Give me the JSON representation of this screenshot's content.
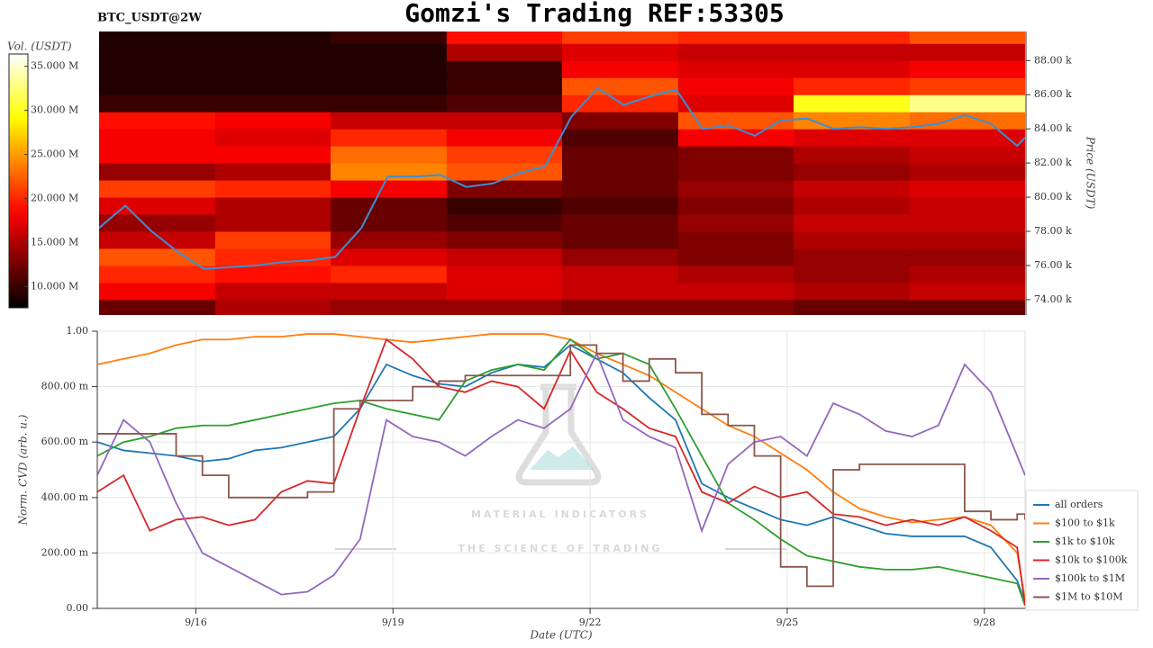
{
  "title": "Gomzi's Trading REF:53305",
  "watermark": {
    "title": "MATERIAL INDICATORS",
    "subtitle": "THE SCIENCE OF TRADING"
  },
  "chart_data": [
    {
      "type": "heatmap",
      "label": "BTC_USDT@2W",
      "ylabel": "Price (USDT)",
      "colormap": "hot",
      "colorbar": {
        "label": "Vol. (USDT)",
        "lim": [
          7.6,
          36.4
        ],
        "ticks": [
          {
            "value": 10,
            "label": "10.000 M"
          },
          {
            "value": 15,
            "label": "15.000 M"
          },
          {
            "value": 20,
            "label": "20.000 M"
          },
          {
            "value": 25,
            "label": "25.000 M"
          },
          {
            "value": 30,
            "label": "30.000 M"
          },
          {
            "value": 35,
            "label": "35.000 M"
          }
        ]
      },
      "xlim": [
        14.5,
        28.62
      ],
      "ylim": [
        73100,
        89700
      ],
      "yticks": [
        {
          "value": 74000,
          "label": "74.00 k"
        },
        {
          "value": 76000,
          "label": "76.00 k"
        },
        {
          "value": 78000,
          "label": "78.00 k"
        },
        {
          "value": 80000,
          "label": "80.00 k"
        },
        {
          "value": 82000,
          "label": "82.00 k"
        },
        {
          "value": 84000,
          "label": "84.00 k"
        },
        {
          "value": 86000,
          "label": "86.00 k"
        },
        {
          "value": 88000,
          "label": "88.00 k"
        }
      ],
      "bins": [
        14.5,
        16.27,
        18.03,
        19.8,
        21.56,
        23.33,
        25.09,
        26.86,
        28.62
      ],
      "levels": [
        73500,
        74500,
        75500,
        76500,
        77500,
        78500,
        79500,
        80500,
        81500,
        82500,
        83500,
        84500,
        85500,
        86500,
        87500,
        88500,
        89500
      ],
      "values": [
        [
          12,
          15,
          14,
          14,
          13,
          13,
          12,
          12
        ],
        [
          18,
          16,
          16,
          17,
          16,
          16,
          15,
          16
        ],
        [
          20,
          19,
          20,
          17,
          16,
          15,
          14,
          15
        ],
        [
          22,
          20,
          17,
          16,
          14,
          13,
          14,
          14
        ],
        [
          16,
          21,
          14,
          13,
          12,
          13,
          15,
          15
        ],
        [
          14,
          15,
          12,
          11,
          12,
          14,
          16,
          16
        ],
        [
          17,
          15,
          12,
          10,
          11,
          13,
          15,
          16
        ],
        [
          21,
          20,
          18,
          13,
          12,
          14,
          16,
          17
        ],
        [
          14,
          15,
          24,
          22,
          12,
          13,
          14,
          15
        ],
        [
          18,
          18,
          23,
          21,
          12,
          13,
          15,
          16
        ],
        [
          18,
          17,
          20,
          18,
          11,
          18,
          17,
          17
        ],
        [
          19,
          18,
          16,
          16,
          13,
          22,
          24,
          23
        ],
        [
          10,
          10,
          10,
          11,
          20,
          17,
          30,
          33
        ],
        [
          9,
          9,
          9,
          10,
          22,
          18,
          20,
          21
        ],
        [
          9,
          9,
          9,
          10,
          18,
          17,
          17,
          18
        ],
        [
          9,
          9,
          9,
          15,
          17,
          16,
          16,
          16
        ],
        [
          9,
          9,
          10,
          19,
          21,
          20,
          20,
          22
        ]
      ],
      "price": {
        "color": "#3b8fd6",
        "x": [
          14.5,
          14.9,
          15.3,
          15.7,
          16.1,
          16.5,
          16.9,
          17.3,
          17.7,
          18.1,
          18.5,
          18.9,
          19.3,
          19.7,
          20.1,
          20.5,
          20.9,
          21.3,
          21.7,
          22.1,
          22.5,
          22.9,
          23.3,
          23.7,
          24.1,
          24.5,
          24.9,
          25.3,
          25.7,
          26.1,
          26.5,
          26.9,
          27.3,
          27.7,
          28.1,
          28.5,
          28.62
        ],
        "values": [
          78200,
          79500,
          78000,
          76800,
          75800,
          75900,
          76000,
          76200,
          76300,
          76500,
          78200,
          81200,
          81200,
          81300,
          80600,
          80800,
          81400,
          81800,
          84700,
          86400,
          85400,
          85900,
          86300,
          84000,
          84200,
          83600,
          84500,
          84600,
          84000,
          84100,
          84000,
          84100,
          84300,
          84800,
          84300,
          83000,
          83500
        ]
      }
    },
    {
      "type": "line",
      "xlabel": "Date (UTC)",
      "ylabel": "Norm. CVD (arb. u.)",
      "grid": true,
      "legend": "lower right",
      "xlim": [
        14.5,
        28.62
      ],
      "ylim": [
        0,
        1
      ],
      "xticks": [
        {
          "value": 16,
          "label": "9/16"
        },
        {
          "value": 19,
          "label": "9/19"
        },
        {
          "value": 22,
          "label": "9/22"
        },
        {
          "value": 25,
          "label": "9/25"
        },
        {
          "value": 28,
          "label": "9/28"
        }
      ],
      "yticks": [
        {
          "value": 0,
          "label": "0.00"
        },
        {
          "value": 0.2,
          "label": "200.00 m"
        },
        {
          "value": 0.4,
          "label": "400.00 m"
        },
        {
          "value": 0.6,
          "label": "600.00 m"
        },
        {
          "value": 0.8,
          "label": "800.00 m"
        },
        {
          "value": 1,
          "label": "1.00"
        }
      ],
      "x": [
        14.5,
        14.9,
        15.3,
        15.7,
        16.1,
        16.5,
        16.9,
        17.3,
        17.7,
        18.1,
        18.5,
        18.9,
        19.3,
        19.7,
        20.1,
        20.5,
        20.9,
        21.3,
        21.7,
        22.1,
        22.5,
        22.9,
        23.3,
        23.7,
        24.1,
        24.5,
        24.9,
        25.3,
        25.7,
        26.1,
        26.5,
        26.9,
        27.3,
        27.7,
        28.1,
        28.5,
        28.62
      ],
      "series": [
        {
          "name": "all orders",
          "color": "#1f77b4",
          "values": [
            0.6,
            0.57,
            0.56,
            0.55,
            0.53,
            0.54,
            0.57,
            0.58,
            0.6,
            0.62,
            0.72,
            0.88,
            0.84,
            0.81,
            0.8,
            0.85,
            0.88,
            0.87,
            0.95,
            0.9,
            0.85,
            0.76,
            0.68,
            0.45,
            0.4,
            0.36,
            0.32,
            0.3,
            0.33,
            0.3,
            0.27,
            0.26,
            0.26,
            0.26,
            0.22,
            0.1,
            0.02
          ]
        },
        {
          "name": "$100 to $1k",
          "color": "#ff7f0e",
          "values": [
            0.88,
            0.9,
            0.92,
            0.95,
            0.97,
            0.97,
            0.98,
            0.98,
            0.99,
            0.99,
            0.98,
            0.97,
            0.96,
            0.97,
            0.98,
            0.99,
            0.99,
            0.99,
            0.97,
            0.92,
            0.88,
            0.84,
            0.78,
            0.72,
            0.66,
            0.62,
            0.56,
            0.5,
            0.42,
            0.36,
            0.33,
            0.31,
            0.32,
            0.33,
            0.3,
            0.2,
            0.03
          ]
        },
        {
          "name": "$1k to $10k",
          "color": "#2ca02c",
          "values": [
            0.55,
            0.6,
            0.62,
            0.65,
            0.66,
            0.66,
            0.68,
            0.7,
            0.72,
            0.74,
            0.75,
            0.72,
            0.7,
            0.68,
            0.82,
            0.86,
            0.88,
            0.86,
            0.97,
            0.9,
            0.92,
            0.88,
            0.72,
            0.55,
            0.38,
            0.32,
            0.25,
            0.19,
            0.17,
            0.15,
            0.14,
            0.14,
            0.15,
            0.13,
            0.11,
            0.09,
            0.01
          ]
        },
        {
          "name": "$10k to $100k",
          "color": "#d62728",
          "values": [
            0.42,
            0.48,
            0.28,
            0.32,
            0.33,
            0.3,
            0.32,
            0.42,
            0.46,
            0.45,
            0.72,
            0.97,
            0.9,
            0.8,
            0.78,
            0.82,
            0.8,
            0.72,
            0.93,
            0.78,
            0.72,
            0.65,
            0.62,
            0.42,
            0.38,
            0.44,
            0.4,
            0.42,
            0.34,
            0.33,
            0.3,
            0.32,
            0.3,
            0.33,
            0.28,
            0.22,
            0.01
          ]
        },
        {
          "name": "$100k to $1M",
          "color": "#9467bd",
          "values": [
            0.48,
            0.68,
            0.6,
            0.38,
            0.2,
            0.15,
            0.1,
            0.05,
            0.06,
            0.12,
            0.25,
            0.68,
            0.62,
            0.6,
            0.55,
            0.62,
            0.68,
            0.65,
            0.72,
            0.92,
            0.68,
            0.62,
            0.58,
            0.28,
            0.52,
            0.6,
            0.62,
            0.55,
            0.74,
            0.7,
            0.64,
            0.62,
            0.66,
            0.88,
            0.78,
            0.55,
            0.48
          ]
        },
        {
          "name": "$1M to $10M",
          "color": "#8c564b",
          "step": true,
          "values": [
            0.63,
            0.63,
            0.63,
            0.55,
            0.48,
            0.4,
            0.4,
            0.4,
            0.42,
            0.72,
            0.75,
            0.75,
            0.8,
            0.82,
            0.84,
            0.84,
            0.84,
            0.84,
            0.95,
            0.92,
            0.82,
            0.9,
            0.85,
            0.7,
            0.66,
            0.55,
            0.15,
            0.08,
            0.5,
            0.52,
            0.52,
            0.52,
            0.52,
            0.35,
            0.32,
            0.34,
            0.32
          ]
        }
      ]
    }
  ]
}
